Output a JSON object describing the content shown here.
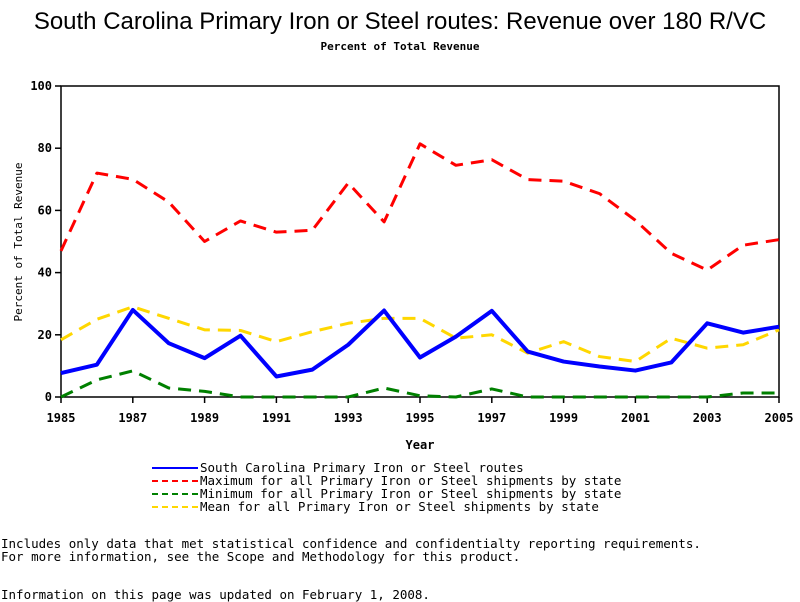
{
  "title": "South Carolina Primary Iron or Steel routes: Revenue over 180 R/VC",
  "subtitle": "Percent of Total Revenue",
  "chart_data": {
    "type": "line",
    "xlabel": "Year",
    "ylabel": "Percent of Total Revenue",
    "xlim": [
      1985,
      2005
    ],
    "ylim": [
      0,
      100
    ],
    "x_ticks": [
      "1985",
      "1987",
      "1989",
      "1991",
      "1993",
      "1995",
      "1997",
      "1999",
      "2001",
      "2003",
      "2005"
    ],
    "y_ticks": [
      "0",
      "20",
      "40",
      "60",
      "80",
      "100"
    ],
    "grid": false,
    "legend_position": "bottom",
    "x": [
      1985,
      1986,
      1987,
      1988,
      1989,
      1990,
      1991,
      1992,
      1993,
      1994,
      1995,
      1996,
      1997,
      1998,
      1999,
      2000,
      2001,
      2002,
      2003,
      2004,
      2005
    ],
    "series": [
      {
        "name": "South Carolina Primary Iron or Steel routes",
        "color": "#0000ff",
        "style": "solid",
        "values": [
          7.7,
          10.4,
          28,
          17.3,
          12.5,
          19.7,
          6.6,
          8.8,
          16.8,
          27.8,
          12.7,
          19.4,
          27.7,
          14.6,
          11.4,
          9.8,
          8.5,
          11.1,
          23.7,
          20.7,
          22.6
        ]
      },
      {
        "name": "Maximum for all Primary Iron or Steel shipments by state",
        "color": "#ff0000",
        "style": "dashed",
        "values": [
          47,
          72,
          70,
          62.7,
          50,
          56.6,
          53,
          53.6,
          68.8,
          56.3,
          81.4,
          74.5,
          76.3,
          69.9,
          69.4,
          65.4,
          56.8,
          46.2,
          40.8,
          48.8,
          50.6
        ]
      },
      {
        "name": "Minimum for all Primary Iron or Steel shipments by state",
        "color": "#008000",
        "style": "dashed",
        "values": [
          0,
          5.5,
          8.4,
          2.9,
          1.8,
          0,
          0,
          0,
          0,
          2.9,
          0.4,
          0,
          2.6,
          0,
          0,
          0,
          0,
          0,
          0,
          1.3,
          1.3
        ]
      },
      {
        "name": "Mean for all Primary Iron or Steel shipments by state",
        "color": "#ffd700",
        "style": "dashed",
        "values": [
          18.4,
          25,
          29,
          25.3,
          21.6,
          21.4,
          17.8,
          21,
          23.7,
          25.3,
          25.3,
          18.9,
          20,
          14.1,
          17.8,
          13,
          11.4,
          18.9,
          15.7,
          16.8,
          21.6
        ]
      }
    ]
  },
  "notes": {
    "line1": "Includes only data that met statistical confidence and confidentialty reporting requirements.",
    "line2": "For more information, see the Scope and Methodology for this product.",
    "updated": "Information on this page was updated on February 1, 2008."
  }
}
